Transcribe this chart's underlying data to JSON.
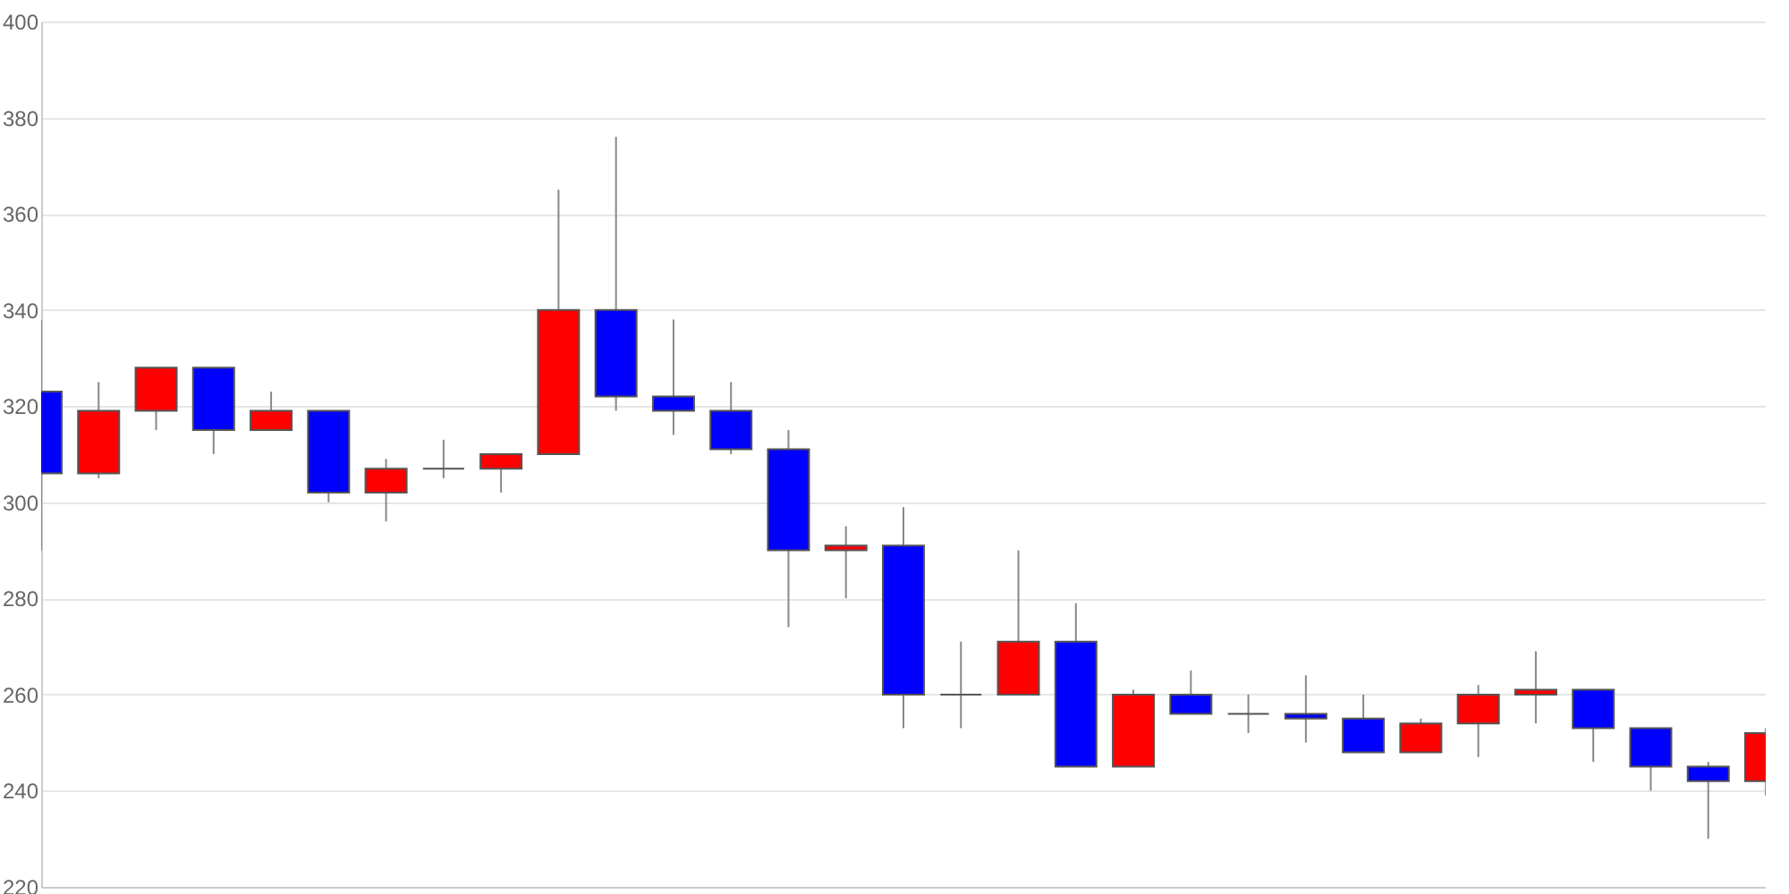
{
  "chart_data": {
    "type": "candlestick",
    "categories": [
      null,
      null,
      null,
      null,
      null,
      null,
      null,
      null,
      null,
      null,
      null,
      null,
      null,
      null,
      null,
      null,
      null,
      null,
      null,
      null,
      null,
      null,
      null,
      null,
      null,
      null,
      null,
      null,
      null,
      null,
      null
    ],
    "ohlc": [
      [
        323,
        338,
        290,
        306
      ],
      [
        306,
        325,
        305,
        319
      ],
      [
        319,
        328,
        315,
        328
      ],
      [
        328,
        328,
        310,
        315
      ],
      [
        315,
        323,
        315,
        319
      ],
      [
        319,
        319,
        300,
        302
      ],
      [
        302,
        309,
        296,
        307
      ],
      [
        307,
        313,
        305,
        307
      ],
      [
        307,
        310,
        302,
        310
      ],
      [
        310,
        365,
        310,
        340
      ],
      [
        340,
        376,
        319,
        322
      ],
      [
        322,
        338,
        314,
        319
      ],
      [
        319,
        325,
        310,
        311
      ],
      [
        311,
        315,
        274,
        290
      ],
      [
        290,
        295,
        280,
        291
      ],
      [
        291,
        299,
        253,
        260
      ],
      [
        260,
        271,
        253,
        260
      ],
      [
        260,
        290,
        260,
        271
      ],
      [
        271,
        279,
        245,
        245
      ],
      [
        245,
        261,
        245,
        260
      ],
      [
        260,
        265,
        256,
        256
      ],
      [
        256,
        260,
        252,
        256
      ],
      [
        256,
        264,
        250,
        255
      ],
      [
        255,
        260,
        248,
        248
      ],
      [
        248,
        255,
        248,
        254
      ],
      [
        254,
        262,
        247,
        260
      ],
      [
        260,
        269,
        254,
        261
      ],
      [
        261,
        261,
        246,
        253
      ],
      [
        253,
        253,
        240,
        245
      ],
      [
        245,
        246,
        230,
        242
      ],
      [
        242,
        253,
        239,
        252
      ]
    ],
    "colors": [
      "#0000ff",
      "#ff0000",
      "#ff0000",
      "#0000ff",
      "#ff0000",
      "#0000ff",
      "#ff0000",
      "#555555",
      "#ff0000",
      "#ff0000",
      "#0000ff",
      "#0000ff",
      "#0000ff",
      "#0000ff",
      "#ff0000",
      "#0000ff",
      "#555555",
      "#ff0000",
      "#0000ff",
      "#ff0000",
      "#0000ff",
      "#555555",
      "#0000ff",
      "#0000ff",
      "#ff0000",
      "#ff0000",
      "#ff0000",
      "#0000ff",
      "#0000ff",
      "#0000ff",
      "#ff0000"
    ],
    "ylim": [
      220,
      400
    ],
    "yticks": [
      220,
      240,
      260,
      280,
      300,
      320,
      340,
      360,
      380,
      400
    ],
    "grid": "y",
    "tick_labels": "y"
  }
}
